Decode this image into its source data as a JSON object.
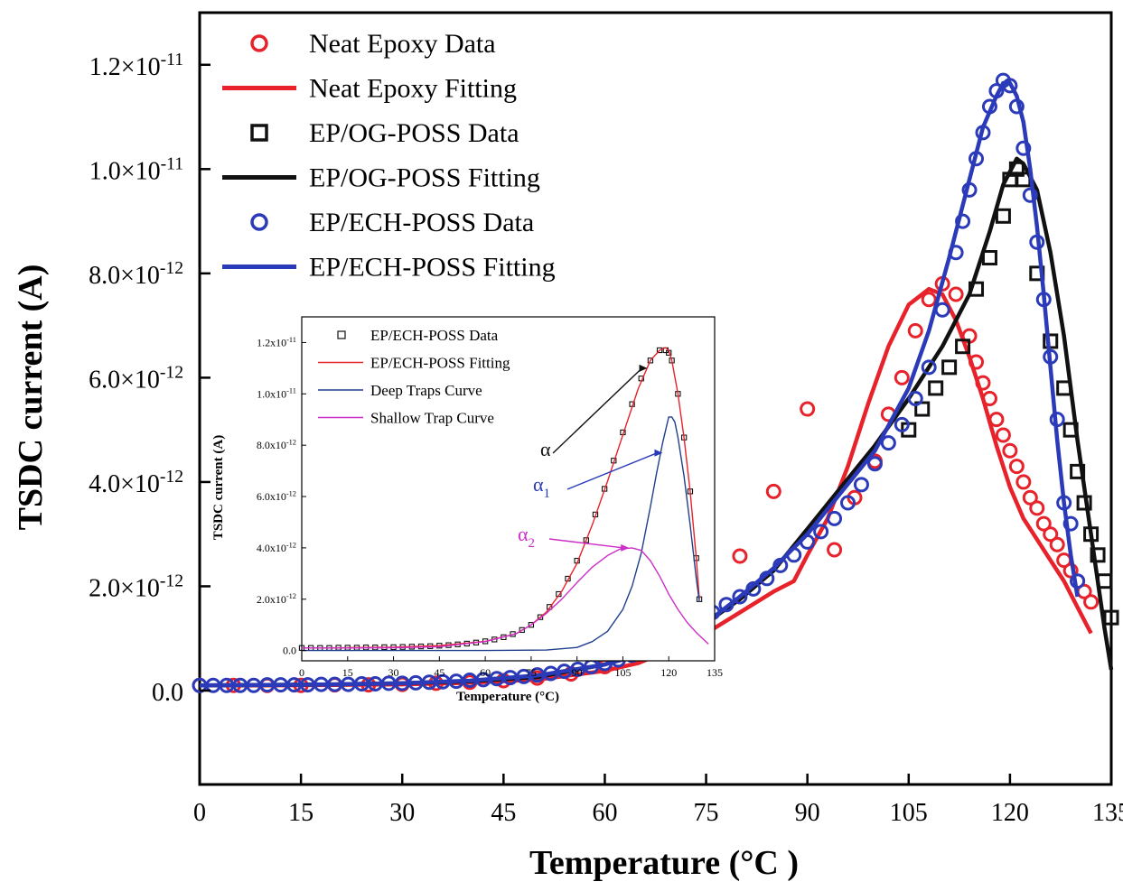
{
  "chart_data": [
    {
      "type": "scatter",
      "title": "",
      "xlabel": "Temperature (°C )",
      "ylabel": "TSDC current (A)",
      "xlim": [
        0,
        135
      ],
      "ylim": [
        -1.8e-12,
        1.3e-11
      ],
      "x_ticks": [
        0,
        15,
        30,
        45,
        60,
        75,
        90,
        105,
        120,
        135
      ],
      "y_ticks": [
        {
          "value": 0,
          "label": "0.0"
        },
        {
          "value": 2e-12,
          "label": "2.0×10",
          "exp": "-12"
        },
        {
          "value": 4e-12,
          "label": "4.0×10",
          "exp": "-12"
        },
        {
          "value": 6e-12,
          "label": "6.0×10",
          "exp": "-12"
        },
        {
          "value": 8e-12,
          "label": "8.0×10",
          "exp": "-12"
        },
        {
          "value": 1e-11,
          "label": "1.0×10",
          "exp": "-11"
        },
        {
          "value": 1.2e-11,
          "label": "1.2×10",
          "exp": "-11"
        }
      ],
      "legend_position": "top-left",
      "series": [
        {
          "name": "Neat Epoxy Data",
          "kind": "markers",
          "marker": "circle",
          "color": "#e8222a",
          "x": [
            0,
            5,
            10,
            15,
            20,
            25,
            30,
            35,
            40,
            45,
            50,
            55,
            60,
            65,
            70,
            75,
            80,
            85,
            90,
            94,
            97,
            100,
            102,
            104,
            106,
            108,
            110,
            112,
            114,
            115,
            116,
            117,
            118,
            119,
            120,
            121,
            122,
            123,
            124,
            125,
            126,
            127,
            128,
            129,
            130,
            131,
            132
          ],
          "y": [
            1e-13,
            1e-13,
            1e-13,
            1e-13,
            1.1e-13,
            1.1e-13,
            1.2e-13,
            1.4e-13,
            1.6e-13,
            1.9e-13,
            2.4e-13,
            3.2e-13,
            4.6e-13,
            6.9e-13,
            1.08e-12,
            1.68e-12,
            2.58e-12,
            3.82e-12,
            5.4e-12,
            2.7e-12,
            3.7e-12,
            4.4e-12,
            5.3e-12,
            6e-12,
            6.9e-12,
            7.5e-12,
            7.8e-12,
            7.6e-12,
            6.8e-12,
            6.3e-12,
            5.9e-12,
            5.6e-12,
            5.2e-12,
            4.9e-12,
            4.6e-12,
            4.3e-12,
            4e-12,
            3.7e-12,
            3.5e-12,
            3.2e-12,
            3e-12,
            2.8e-12,
            2.5e-12,
            2.3e-12,
            2.1e-12,
            1.9e-12,
            1.7e-12
          ]
        },
        {
          "name": "Neat Epoxy Fitting",
          "kind": "line",
          "color": "#e8222a",
          "x": [
            0,
            10,
            20,
            30,
            40,
            50,
            60,
            65,
            70,
            75,
            80,
            85,
            88,
            90,
            93,
            96,
            99,
            102,
            105,
            108,
            110,
            112,
            114,
            116,
            118,
            120,
            122,
            124,
            126,
            128,
            130,
            132
          ],
          "y": [
            1e-13,
            1e-13,
            1.1e-13,
            1.2e-13,
            1.5e-13,
            2.1e-13,
            3.8e-13,
            5.3e-13,
            8e-13,
            1.1e-12,
            1.5e-12,
            1.9e-12,
            2.1e-12,
            2.6e-12,
            3.3e-12,
            4.3e-12,
            5.5e-12,
            6.6e-12,
            7.4e-12,
            7.7e-12,
            7.6e-12,
            7.1e-12,
            6.4e-12,
            5.6e-12,
            4.7e-12,
            3.9e-12,
            3.3e-12,
            2.9e-12,
            2.5e-12,
            2.1e-12,
            1.6e-12,
            1.1e-12
          ]
        },
        {
          "name": "EP/OG-POSS Data",
          "kind": "markers",
          "marker": "square",
          "color": "#111111",
          "x": [
            105,
            107,
            109,
            111,
            113,
            115,
            117,
            119,
            120,
            121,
            122,
            124,
            126,
            128,
            129,
            130,
            131,
            132,
            133,
            134,
            135
          ],
          "y": [
            5e-12,
            5.4e-12,
            5.8e-12,
            6.2e-12,
            6.6e-12,
            7.7e-12,
            8.3e-12,
            9.1e-12,
            9.8e-12,
            1e-11,
            9.8e-12,
            8e-12,
            6.7e-12,
            5.8e-12,
            5e-12,
            4.2e-12,
            3.6e-12,
            3e-12,
            2.6e-12,
            2.1e-12,
            1.4e-12
          ]
        },
        {
          "name": "EP/OG-POSS Fitting",
          "kind": "line",
          "color": "#111111",
          "x": [
            0,
            10,
            20,
            30,
            40,
            50,
            60,
            70,
            75,
            80,
            85,
            90,
            95,
            100,
            105,
            110,
            114,
            117,
            119,
            121,
            122,
            124,
            126,
            128,
            130,
            132,
            134,
            135
          ],
          "y": [
            1e-13,
            1.1e-13,
            1.2e-13,
            1.4e-13,
            1.8e-13,
            2.6e-13,
            5e-13,
            9.5e-13,
            1.3e-12,
            1.75e-12,
            2.3e-12,
            3.1e-12,
            3.9e-12,
            4.7e-12,
            5.6e-12,
            6.6e-12,
            7.6e-12,
            8.8e-12,
            9.7e-12,
            1.02e-11,
            1.01e-11,
            9.6e-12,
            8.4e-12,
            6.8e-12,
            4.8e-12,
            3e-12,
            1.2e-12,
            4e-13
          ]
        },
        {
          "name": "EP/ECH-POSS Data",
          "kind": "markers",
          "marker": "circle",
          "color": "#2a3ab8",
          "x": [
            0,
            2,
            4,
            6,
            8,
            10,
            12,
            14,
            16,
            18,
            20,
            22,
            24,
            26,
            28,
            30,
            32,
            34,
            36,
            38,
            40,
            42,
            44,
            46,
            48,
            50,
            52,
            54,
            56,
            58,
            60,
            62,
            64,
            66,
            68,
            70,
            72,
            74,
            76,
            78,
            80,
            82,
            84,
            86,
            88,
            90,
            92,
            94,
            96,
            98,
            100,
            102,
            104,
            106,
            108,
            110,
            112,
            113,
            114,
            115,
            116,
            117,
            118,
            119,
            120,
            121,
            122,
            123,
            124,
            125,
            126,
            127,
            128,
            129,
            130
          ],
          "y": [
            1e-13,
            1e-13,
            1e-13,
            1e-13,
            1e-13,
            1.1e-13,
            1.1e-13,
            1.1e-13,
            1.1e-13,
            1.2e-13,
            1.2e-13,
            1.2e-13,
            1.3e-13,
            1.3e-13,
            1.4e-13,
            1.4e-13,
            1.5e-13,
            1.6e-13,
            1.7e-13,
            1.8e-13,
            2e-13,
            2.1e-13,
            2.3e-13,
            2.5e-13,
            2.7e-13,
            3e-13,
            3.3e-13,
            3.7e-13,
            4.1e-13,
            4.6e-13,
            5.2e-13,
            5.9e-13,
            6.8e-13,
            7.8e-13,
            9e-13,
            1.05e-12,
            1.2e-12,
            1.35e-12,
            1.5e-12,
            1.65e-12,
            1.8e-12,
            1.95e-12,
            2.15e-12,
            2.4e-12,
            2.6e-12,
            2.85e-12,
            3.05e-12,
            3.3e-12,
            3.6e-12,
            3.95e-12,
            4.35e-12,
            4.75e-12,
            5.1e-12,
            5.6e-12,
            6.2e-12,
            7.3e-12,
            8.4e-12,
            9e-12,
            9.6e-12,
            1.02e-11,
            1.07e-11,
            1.12e-11,
            1.15e-11,
            1.17e-11,
            1.16e-11,
            1.12e-11,
            1.04e-11,
            9.5e-12,
            8.6e-12,
            7.5e-12,
            6.4e-12,
            5.2e-12,
            3.6e-12,
            3.2e-12,
            2.1e-12
          ]
        },
        {
          "name": "EP/ECH-POSS Fitting",
          "kind": "line",
          "color": "#2a3ab8",
          "x": [
            0,
            10,
            20,
            30,
            40,
            50,
            60,
            65,
            70,
            75,
            80,
            85,
            90,
            95,
            100,
            105,
            108,
            111,
            114,
            116,
            118,
            119,
            120,
            121,
            122,
            123,
            124,
            125,
            126,
            127,
            128,
            129,
            130
          ],
          "y": [
            1e-13,
            1.1e-13,
            1.2e-13,
            1.4e-13,
            1.9e-13,
            2.9e-13,
            5e-13,
            6.8e-13,
            9.5e-13,
            1.3e-12,
            1.8e-12,
            2.35e-12,
            3e-12,
            3.8e-12,
            4.6e-12,
            5.8e-12,
            6.9e-12,
            8.3e-12,
            9.8e-12,
            1.08e-11,
            1.14e-11,
            1.165e-11,
            1.165e-11,
            1.14e-11,
            1.09e-11,
            1e-11,
            8.9e-12,
            7.6e-12,
            6.2e-12,
            4.8e-12,
            3.6e-12,
            2.6e-12,
            1.8e-12
          ]
        }
      ]
    },
    {
      "type": "scatter",
      "title": "inset",
      "xlabel": "Temperature (°C)",
      "ylabel": "TSDC current (A)",
      "xlim": [
        0,
        135
      ],
      "ylim": [
        -4e-13,
        1.3e-11
      ],
      "x_ticks": [
        0,
        15,
        30,
        45,
        60,
        75,
        90,
        105,
        120,
        135
      ],
      "y_ticks": [
        {
          "value": 0,
          "label": "0.0"
        },
        {
          "value": 2e-12,
          "label": "2.0x10",
          "exp": "-12"
        },
        {
          "value": 4e-12,
          "label": "4.0x10",
          "exp": "-12"
        },
        {
          "value": 6e-12,
          "label": "6.0x10",
          "exp": "-12"
        },
        {
          "value": 8e-12,
          "label": "8.0x10",
          "exp": "-12"
        },
        {
          "value": 1e-11,
          "label": "1.0x10",
          "exp": "-11"
        },
        {
          "value": 1.2e-11,
          "label": "1.2x10",
          "exp": "-11"
        }
      ],
      "legend_position": "top-left",
      "series": [
        {
          "name": "EP/ECH-POSS Data",
          "kind": "markers",
          "marker": "square",
          "color": "#111111",
          "x": [
            0,
            3,
            6,
            9,
            12,
            15,
            18,
            21,
            24,
            27,
            30,
            33,
            36,
            39,
            42,
            45,
            48,
            51,
            54,
            57,
            60,
            63,
            66,
            69,
            72,
            75,
            78,
            81,
            84,
            87,
            90,
            93,
            96,
            99,
            102,
            105,
            108,
            111,
            114,
            117,
            119,
            120,
            121,
            123,
            125,
            127,
            129,
            130
          ],
          "y": [
            1e-13,
            1e-13,
            1e-13,
            1e-13,
            1.1e-13,
            1.1e-13,
            1.1e-13,
            1.2e-13,
            1.2e-13,
            1.3e-13,
            1.3e-13,
            1.4e-13,
            1.5e-13,
            1.6e-13,
            1.7e-13,
            1.9e-13,
            2.1e-13,
            2.4e-13,
            2.7e-13,
            3.1e-13,
            3.6e-13,
            4.3e-13,
            5.2e-13,
            6.4e-13,
            8e-13,
            1e-12,
            1.3e-12,
            1.7e-12,
            2.2e-12,
            2.8e-12,
            3.5e-12,
            4.3e-12,
            5.3e-12,
            6.3e-12,
            7.4e-12,
            8.5e-12,
            9.6e-12,
            1.06e-11,
            1.13e-11,
            1.17e-11,
            1.17e-11,
            1.16e-11,
            1.13e-11,
            1e-11,
            8.3e-12,
            6.2e-12,
            3.6e-12,
            2e-12
          ]
        },
        {
          "name": "EP/ECH-POSS Fitting",
          "kind": "line",
          "color": "#e8222a",
          "x": [
            0,
            15,
            30,
            45,
            60,
            70,
            75,
            80,
            85,
            90,
            95,
            100,
            105,
            110,
            114,
            117,
            119,
            120,
            121,
            123,
            125,
            127,
            129,
            130
          ],
          "y": [
            1e-13,
            1.1e-13,
            1.3e-13,
            1.9e-13,
            3.6e-13,
            6.5e-13,
            1e-12,
            1.5e-12,
            2.3e-12,
            3.4e-12,
            4.9e-12,
            6.6e-12,
            8.4e-12,
            1.02e-11,
            1.13e-11,
            1.17e-11,
            1.18e-11,
            1.17e-11,
            1.13e-11,
            1e-11,
            8.3e-12,
            6.2e-12,
            3.6e-12,
            2e-12
          ]
        },
        {
          "name": "Deep Traps Curve",
          "kind": "line",
          "color": "#1f3f8c",
          "x": [
            0,
            30,
            60,
            80,
            90,
            95,
            100,
            105,
            108,
            111,
            114,
            116,
            118,
            120,
            121,
            122,
            123,
            125,
            127,
            129,
            130
          ],
          "y": [
            0,
            0,
            0,
            2e-14,
            1.2e-13,
            3.5e-13,
            7.5e-13,
            1.6e-12,
            2.5e-12,
            3.8e-12,
            5.6e-12,
            6.9e-12,
            8.1e-12,
            9.1e-12,
            9.1e-12,
            8.9e-12,
            8.3e-12,
            6.8e-12,
            4.9e-12,
            2.8e-12,
            1.9e-12
          ]
        },
        {
          "name": "Shallow Trap Curve",
          "kind": "line",
          "color": "#cc2ec7",
          "x": [
            0,
            15,
            30,
            45,
            60,
            70,
            75,
            80,
            85,
            90,
            95,
            100,
            104,
            108,
            111,
            114,
            117,
            120,
            123,
            126,
            129,
            133
          ],
          "y": [
            1e-13,
            1e-13,
            1.1e-13,
            1.5e-13,
            3.5e-13,
            6.5e-13,
            1e-12,
            1.45e-12,
            2e-12,
            2.65e-12,
            3.25e-12,
            3.7e-12,
            3.95e-12,
            4e-12,
            3.9e-12,
            3.5e-12,
            2.9e-12,
            2.2e-12,
            1.6e-12,
            1.1e-12,
            7e-13,
            2.5e-13
          ]
        }
      ],
      "annotations": [
        {
          "symbol": "α",
          "sub": "",
          "color": "#111111",
          "target_x": 113,
          "target_y": 1.1e-11
        },
        {
          "symbol": "α",
          "sub": "1",
          "color": "#2a3ab8",
          "target_x": 118,
          "target_y": 7.7e-12
        },
        {
          "symbol": "α",
          "sub": "2",
          "color": "#cc2ec7",
          "target_x": 107,
          "target_y": 4e-12
        }
      ]
    }
  ]
}
